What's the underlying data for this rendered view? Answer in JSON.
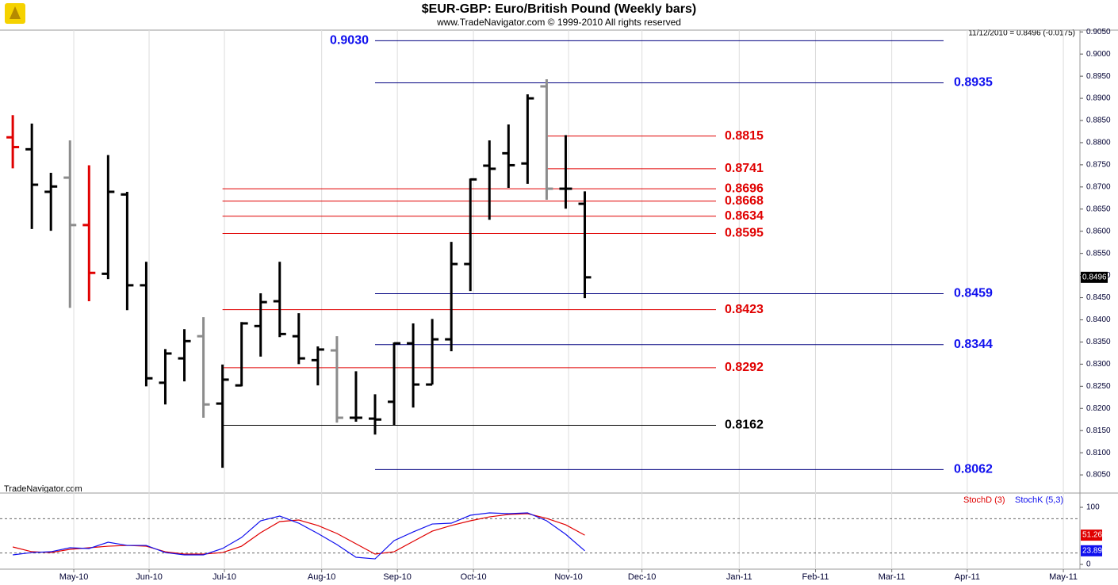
{
  "header": {
    "title": "$EUR-GBP:  Euro/British Pound  (Weekly bars)",
    "subtitle": "www.TradeNavigator.com © 1999-2010 All rights reserved",
    "quote": "11/12/2010 = 0.8496 (-0.0175)",
    "source": "TradeNavigator.com"
  },
  "chart_data": [
    {
      "type": "ohlc",
      "x": [
        0,
        1,
        2,
        3,
        4,
        5,
        6,
        7,
        8,
        9,
        10,
        11,
        12,
        13,
        14,
        15,
        16,
        17,
        18,
        19,
        20,
        21,
        22,
        23,
        24,
        25,
        26,
        27,
        28,
        29,
        30
      ],
      "open": [
        0.8812,
        0.8785,
        0.8689,
        0.8721,
        0.8614,
        0.8504,
        0.8683,
        0.8478,
        0.8258,
        0.8313,
        0.8363,
        0.8211,
        0.8252,
        0.8386,
        0.8442,
        0.8363,
        0.8309,
        0.8331,
        0.8179,
        0.8177,
        0.8215,
        0.8347,
        0.8254,
        0.8356,
        0.8526,
        0.8748,
        0.8776,
        0.8753,
        0.8927,
        0.8696,
        0.8662
      ],
      "high": [
        0.8862,
        0.8843,
        0.8732,
        0.8805,
        0.8749,
        0.8772,
        0.8689,
        0.8531,
        0.8334,
        0.8379,
        0.8406,
        0.8299,
        0.8395,
        0.846,
        0.8531,
        0.8415,
        0.834,
        0.8363,
        0.8284,
        0.8232,
        0.8349,
        0.8392,
        0.8402,
        0.8576,
        0.8719,
        0.8805,
        0.8841,
        0.8909,
        0.8943,
        0.8817,
        0.869
      ],
      "low": [
        0.8742,
        0.8605,
        0.8601,
        0.8427,
        0.8442,
        0.8492,
        0.8422,
        0.825,
        0.8209,
        0.8261,
        0.8179,
        0.8066,
        0.825,
        0.8317,
        0.8361,
        0.83,
        0.8252,
        0.8168,
        0.817,
        0.8141,
        0.8161,
        0.8202,
        0.8254,
        0.8329,
        0.8465,
        0.8626,
        0.8698,
        0.8707,
        0.8671,
        0.8651,
        0.8449
      ],
      "close": [
        0.879,
        0.8705,
        0.8701,
        0.8614,
        0.8506,
        0.8689,
        0.8478,
        0.8268,
        0.8324,
        0.8352,
        0.8209,
        0.8265,
        0.8392,
        0.844,
        0.8368,
        0.8313,
        0.8333,
        0.8179,
        0.8179,
        0.8175,
        0.8347,
        0.8254,
        0.8356,
        0.8526,
        0.8717,
        0.8741,
        0.8749,
        0.89,
        0.8696,
        0.8696,
        0.8496
      ],
      "bar_colors": [
        "#e00000",
        "#000000",
        "#000000",
        "#8c8c8c",
        "#e00000",
        "#000000",
        "#000000",
        "#000000",
        "#000000",
        "#000000",
        "#8c8c8c",
        "#000000",
        "#000000",
        "#000000",
        "#000000",
        "#000000",
        "#000000",
        "#8c8c8c",
        "#000000",
        "#000000",
        "#000000",
        "#000000",
        "#000000",
        "#000000",
        "#000000",
        "#000000",
        "#000000",
        "#000000",
        "#8c8c8c",
        "#000000",
        "#000000"
      ],
      "xlim": [
        -0.67,
        55.97
      ],
      "xticks": [
        {
          "value": 3.2,
          "label": "May-10"
        },
        {
          "value": 7.15,
          "label": "Jun-10"
        },
        {
          "value": 11.1,
          "label": "Jul-10"
        },
        {
          "value": 16.2,
          "label": "Aug-10"
        },
        {
          "value": 20.17,
          "label": "Sep-10"
        },
        {
          "value": 24.16,
          "label": "Oct-10"
        },
        {
          "value": 29.15,
          "label": "Nov-10"
        },
        {
          "value": 33.0,
          "label": "Dec-10"
        },
        {
          "value": 38.1,
          "label": "Jan-11"
        },
        {
          "value": 42.1,
          "label": "Feb-11"
        },
        {
          "value": 46.1,
          "label": "Mar-11"
        },
        {
          "value": 50.06,
          "label": "Apr-11"
        },
        {
          "value": 55.1,
          "label": "May-11"
        }
      ],
      "ylim": [
        0.8009,
        0.9054
      ],
      "yticks": [
        {
          "value": 0.805,
          "label": "0.8050"
        },
        {
          "value": 0.81,
          "label": "0.8100"
        },
        {
          "value": 0.815,
          "label": "0.8150"
        },
        {
          "value": 0.82,
          "label": "0.8200"
        },
        {
          "value": 0.825,
          "label": "0.8250"
        },
        {
          "value": 0.83,
          "label": "0.8300"
        },
        {
          "value": 0.835,
          "label": "0.8350"
        },
        {
          "value": 0.84,
          "label": "0.8400"
        },
        {
          "value": 0.845,
          "label": "0.8450"
        },
        {
          "value": 0.85,
          "label": "0.8500"
        },
        {
          "value": 0.855,
          "label": "0.8550"
        },
        {
          "value": 0.86,
          "label": "0.8600"
        },
        {
          "value": 0.865,
          "label": "0.8650"
        },
        {
          "value": 0.87,
          "label": "0.8700"
        },
        {
          "value": 0.875,
          "label": "0.8750"
        },
        {
          "value": 0.88,
          "label": "0.8800"
        },
        {
          "value": 0.885,
          "label": "0.8850"
        },
        {
          "value": 0.89,
          "label": "0.8900"
        },
        {
          "value": 0.895,
          "label": "0.8950"
        },
        {
          "value": 0.9,
          "label": "0.9000"
        },
        {
          "value": 0.905,
          "label": "0.9050"
        }
      ],
      "levels": [
        {
          "value": 0.903,
          "label": "0.9030",
          "color": "#1010ee"
        },
        {
          "value": 0.8935,
          "color": "#1010ee"
        },
        {
          "value": 0.8815,
          "color": "#e00000"
        },
        {
          "value": 0.8741,
          "color": "#e00000"
        },
        {
          "value": 0.8696,
          "color": "#e00000"
        },
        {
          "value": 0.8668,
          "color": "#e00000"
        },
        {
          "value": 0.8634,
          "color": "#e00000"
        },
        {
          "value": 0.8595,
          "color": "#e00000"
        },
        {
          "value": 0.8459,
          "color": "#1010ee"
        },
        {
          "value": 0.8423,
          "color": "#e00000"
        },
        {
          "value": 0.8344,
          "color": "#1010ee"
        },
        {
          "value": 0.8292,
          "color": "#e00000"
        },
        {
          "value": 0.8162,
          "color": "#000000"
        },
        {
          "value": 0.8062,
          "color": "#1010ee"
        }
      ]
    },
    {
      "type": "line",
      "x": [
        0,
        1,
        2,
        3,
        4,
        5,
        6,
        7,
        8,
        9,
        10,
        11,
        12,
        13,
        14,
        15,
        16,
        17,
        18,
        19,
        20,
        21,
        22,
        23,
        24,
        25,
        26,
        27,
        28,
        29,
        30
      ],
      "series": [
        {
          "name": "StochD (3)",
          "color": "#e00000",
          "values": [
            30.6,
            22.2,
            20.8,
            26.4,
            29.2,
            31.9,
            33.3,
            31.9,
            22.2,
            18.1,
            18.1,
            20.8,
            31.9,
            55.6,
            75,
            77.8,
            68.1,
            54.2,
            36.1,
            18.1,
            22.2,
            40.3,
            58.3,
            68.1,
            76.4,
            83.3,
            87.5,
            88.9,
            80.6,
            69.4,
            51.26
          ]
        },
        {
          "name": "StochK (5,3)",
          "color": "#1010ee",
          "values": [
            16.7,
            20.8,
            22.2,
            29.2,
            27.8,
            38.9,
            33.3,
            33.3,
            20.8,
            16.7,
            16.7,
            27.8,
            47.2,
            76.4,
            84.7,
            72.2,
            54.2,
            34.7,
            12.5,
            9.7,
            41.7,
            56.9,
            70.8,
            72.2,
            86.1,
            90.3,
            88.9,
            90.3,
            76.4,
            52.8,
            23.89
          ]
        }
      ],
      "ylim": [
        -8.3,
        125
      ],
      "yticks": [
        0,
        100
      ],
      "levels": [
        20,
        80
      ]
    }
  ]
}
